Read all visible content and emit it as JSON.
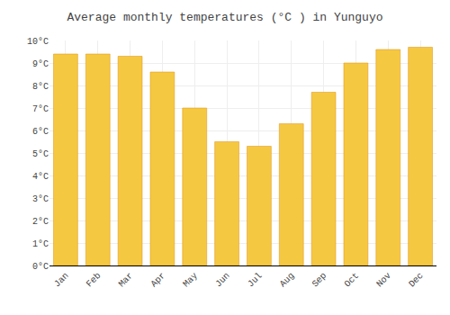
{
  "chart_data": {
    "type": "bar",
    "title": "Average monthly temperatures (°C ) in Yunguyo",
    "categories": [
      "Jan",
      "Feb",
      "Mar",
      "Apr",
      "May",
      "Jun",
      "Jul",
      "Aug",
      "Sep",
      "Oct",
      "Nov",
      "Dec"
    ],
    "values": [
      9.4,
      9.4,
      9.3,
      8.6,
      7.0,
      5.5,
      5.3,
      6.3,
      7.7,
      9.0,
      9.6,
      9.7
    ],
    "color": "#F5C842",
    "ylim": [
      0,
      10
    ],
    "yticks": [
      {
        "value": 0,
        "label": "0°C"
      },
      {
        "value": 1,
        "label": "1°C"
      },
      {
        "value": 2,
        "label": "2°C"
      },
      {
        "value": 3,
        "label": "3°C"
      },
      {
        "value": 4,
        "label": "4°C"
      },
      {
        "value": 5,
        "label": "5°C"
      },
      {
        "value": 6,
        "label": "6°C"
      },
      {
        "value": 7,
        "label": "7°C"
      },
      {
        "value": 8,
        "label": "8°C"
      },
      {
        "value": 9,
        "label": "9°C"
      },
      {
        "value": 10,
        "label": "10°C"
      }
    ],
    "grid": true
  }
}
